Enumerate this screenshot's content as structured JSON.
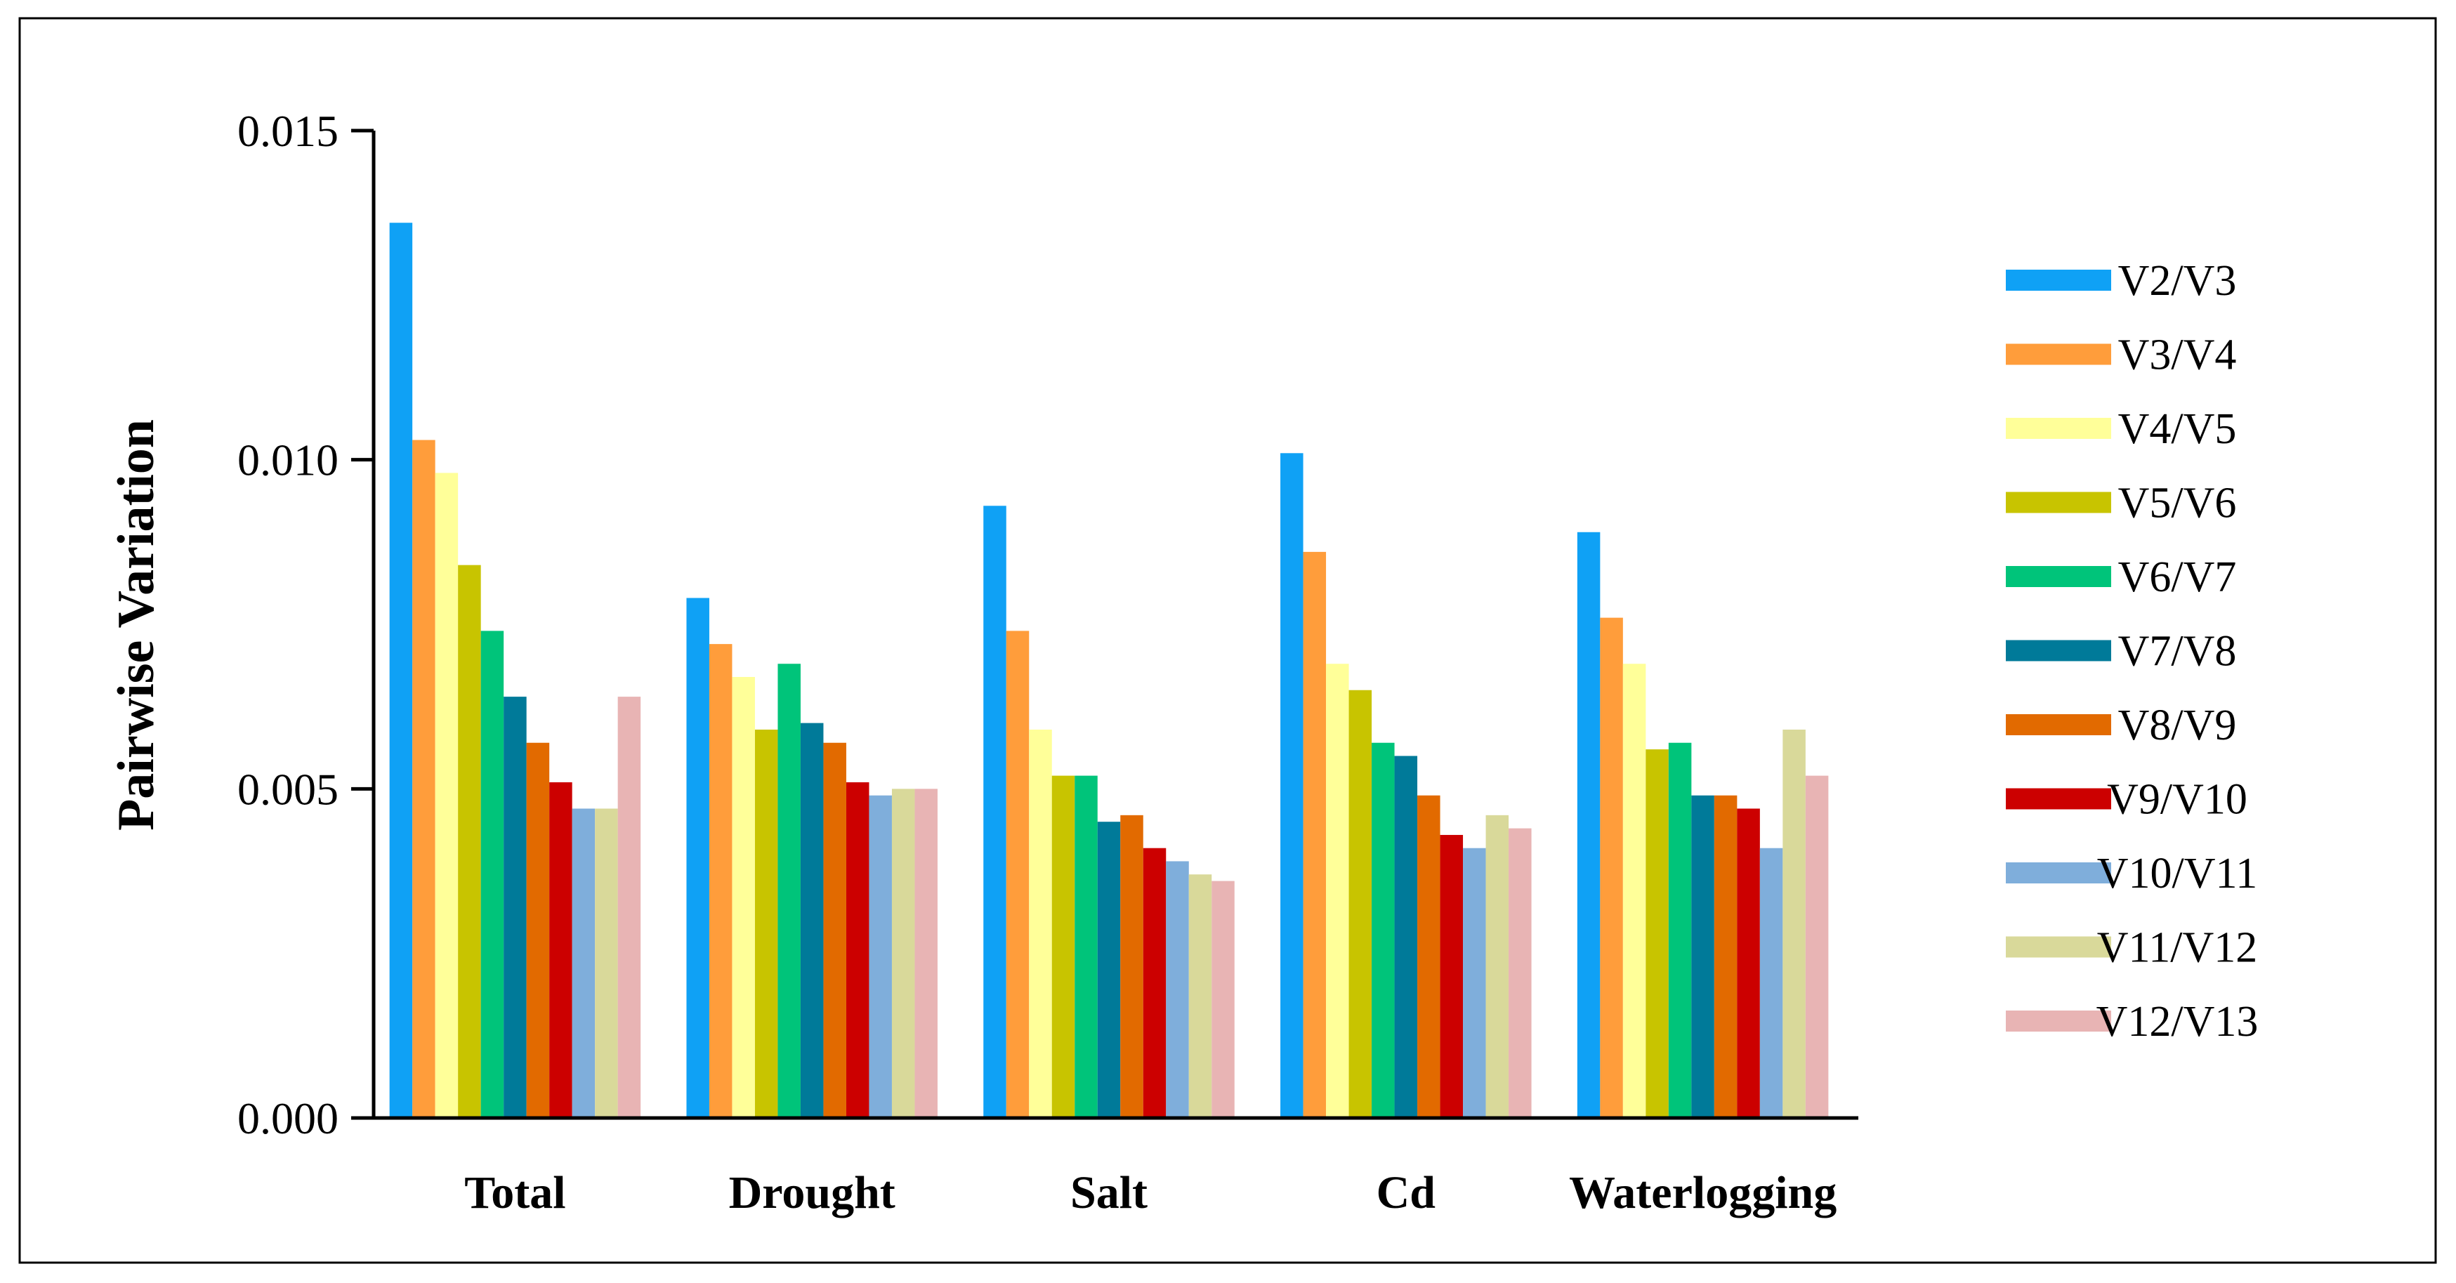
{
  "chart_data": {
    "type": "bar",
    "title": "",
    "xlabel": "",
    "ylabel": "Pairwise Variation",
    "ylim": [
      0,
      0.015
    ],
    "yticks": [
      "0.000",
      "0.005",
      "0.010",
      "0.015"
    ],
    "ytick_values": [
      0,
      0.005,
      0.01,
      0.015
    ],
    "categories": [
      "Total",
      "Drought",
      "Salt",
      "Cd",
      "Waterlogging"
    ],
    "grid": false,
    "legend_position": "right",
    "series": [
      {
        "name": "V2/V3",
        "color": "#0FA1F5",
        "values": [
          0.0136,
          0.0079,
          0.0093,
          0.0101,
          0.0089
        ]
      },
      {
        "name": "V3/V4",
        "color": "#FF9D3B",
        "values": [
          0.0103,
          0.0072,
          0.0074,
          0.0086,
          0.0076
        ]
      },
      {
        "name": "V4/V5",
        "color": "#FFFF99",
        "values": [
          0.0098,
          0.0067,
          0.0059,
          0.0069,
          0.0069
        ]
      },
      {
        "name": "V5/V6",
        "color": "#C8C400",
        "values": [
          0.0084,
          0.0059,
          0.0052,
          0.0065,
          0.0056
        ]
      },
      {
        "name": "V6/V7",
        "color": "#00C47A",
        "values": [
          0.0074,
          0.0069,
          0.0052,
          0.0057,
          0.0057
        ]
      },
      {
        "name": "V7/V8",
        "color": "#007A99",
        "values": [
          0.0064,
          0.006,
          0.0045,
          0.0055,
          0.0049
        ]
      },
      {
        "name": "V8/V9",
        "color": "#E26A00",
        "values": [
          0.0057,
          0.0057,
          0.0046,
          0.0049,
          0.0049
        ]
      },
      {
        "name": "V9/V10",
        "color": "#CC0000",
        "values": [
          0.0051,
          0.0051,
          0.0041,
          0.0043,
          0.0047
        ]
      },
      {
        "name": "V10/V11",
        "color": "#7FAEDB",
        "values": [
          0.0047,
          0.0049,
          0.0039,
          0.0041,
          0.0041
        ]
      },
      {
        "name": "V11/V12",
        "color": "#D9D99A",
        "values": [
          0.0047,
          0.005,
          0.0037,
          0.0046,
          0.0059
        ]
      },
      {
        "name": "V12/V13",
        "color": "#E8B4B4",
        "values": [
          0.0064,
          0.005,
          0.0036,
          0.0044,
          0.0052
        ]
      }
    ]
  }
}
